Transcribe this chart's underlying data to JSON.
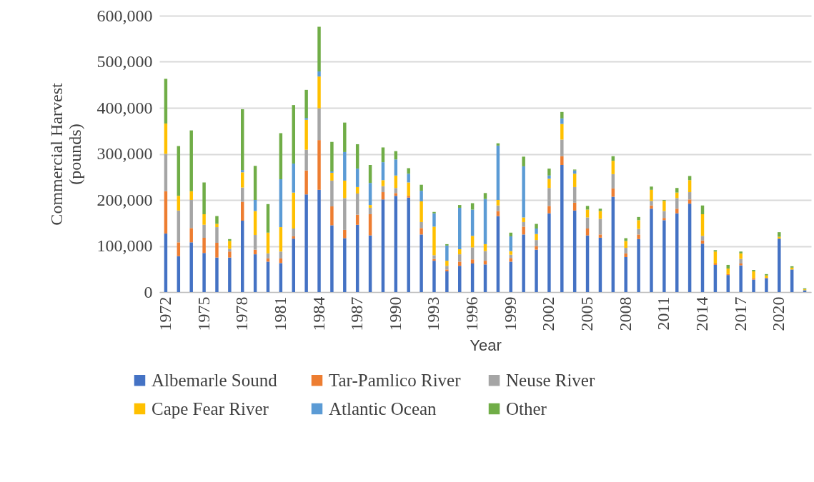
{
  "chart_data": {
    "type": "bar",
    "stacked": true,
    "xlabel": "Year",
    "ylabel": "Commercial Harvest (pounds)",
    "categories": [
      "1972",
      null,
      null,
      "1975",
      null,
      null,
      "1978",
      null,
      null,
      "1981",
      null,
      null,
      "1984",
      null,
      null,
      "1987",
      null,
      null,
      "1990",
      null,
      null,
      "1993",
      null,
      null,
      "1996",
      null,
      null,
      "1999",
      null,
      null,
      "2002",
      null,
      null,
      "2005",
      null,
      null,
      "2008",
      null,
      null,
      "2011",
      null,
      null,
      "2014",
      null,
      null,
      "2017",
      null,
      null,
      "2020",
      null,
      null
    ],
    "series": [
      {
        "name": "Albemarle Sound",
        "color": "#4472c4",
        "values": [
          127000,
          78000,
          108000,
          85000,
          75000,
          75000,
          155000,
          82000,
          66000,
          63000,
          116000,
          212000,
          222000,
          145000,
          117000,
          146000,
          123000,
          201000,
          209000,
          205000,
          125000,
          68000,
          45000,
          57000,
          62000,
          60000,
          165000,
          66000,
          125000,
          92000,
          171000,
          276000,
          177000,
          123000,
          118000,
          207000,
          76000,
          115000,
          181000,
          156000,
          171000,
          192000,
          105000,
          59000,
          37000,
          58000,
          27000,
          30000,
          116000,
          49000,
          4000
        ]
      },
      {
        "name": "Tar-Pamlico River",
        "color": "#ed7d31",
        "values": [
          92000,
          30000,
          31000,
          33000,
          32000,
          13000,
          41000,
          10000,
          7000,
          10000,
          5000,
          52000,
          108000,
          41000,
          18000,
          22000,
          46000,
          16000,
          6000,
          4000,
          14000,
          4000,
          4000,
          9000,
          9000,
          8000,
          11000,
          8000,
          17000,
          8000,
          16000,
          19000,
          17000,
          15000,
          7000,
          18000,
          8000,
          10000,
          7000,
          5000,
          10000,
          9000,
          7000,
          3000,
          2000,
          4000,
          3000,
          1000,
          0,
          0,
          0
        ]
      },
      {
        "name": "Neuse River",
        "color": "#a5a5a5",
        "values": [
          81000,
          69000,
          61000,
          28000,
          34000,
          6000,
          31000,
          32000,
          11000,
          15000,
          17000,
          45000,
          69000,
          56000,
          69000,
          46000,
          14000,
          13000,
          11000,
          0,
          13000,
          8000,
          8000,
          16000,
          26000,
          21000,
          12000,
          7000,
          10000,
          13000,
          39000,
          36000,
          34000,
          24000,
          34000,
          31000,
          12000,
          12000,
          10000,
          15000,
          23000,
          16000,
          10000,
          0,
          0,
          10000,
          0,
          0,
          0,
          0,
          0
        ]
      },
      {
        "name": "Cape Fear River",
        "color": "#ffc000",
        "values": [
          66000,
          32000,
          19000,
          23000,
          7000,
          17000,
          33000,
          52000,
          45000,
          53000,
          78000,
          65000,
          69000,
          17000,
          38000,
          14000,
          6000,
          13000,
          27000,
          29000,
          45000,
          62000,
          11000,
          11000,
          25000,
          15000,
          12000,
          8000,
          10000,
          13000,
          20000,
          34000,
          29000,
          17000,
          17000,
          29000,
          15000,
          19000,
          24000,
          22000,
          12000,
          26000,
          47000,
          26000,
          12000,
          12000,
          15000,
          5000,
          4000,
          4000,
          2000
        ]
      },
      {
        "name": "Atlantic Ocean",
        "color": "#5b9bd5",
        "values": [
          0,
          0,
          0,
          0,
          0,
          0,
          5000,
          24000,
          0,
          104000,
          63000,
          4000,
          11000,
          3000,
          62000,
          40000,
          48000,
          39000,
          35000,
          19000,
          23000,
          29000,
          33000,
          90000,
          57000,
          98000,
          118000,
          32000,
          111000,
          12000,
          7000,
          12000,
          7000,
          0,
          0,
          0,
          0,
          0,
          0,
          0,
          0,
          0,
          0,
          0,
          0,
          0,
          0,
          0,
          0,
          0,
          0
        ]
      },
      {
        "name": "Other",
        "color": "#70ad47",
        "values": [
          97000,
          108000,
          132000,
          69000,
          17000,
          4000,
          132000,
          74000,
          62000,
          100000,
          127000,
          61000,
          97000,
          64000,
          64000,
          53000,
          39000,
          32000,
          18000,
          12000,
          13000,
          3000,
          3000,
          6000,
          14000,
          13000,
          5000,
          8000,
          21000,
          10000,
          15000,
          14000,
          2000,
          8000,
          5000,
          10000,
          6000,
          7000,
          7000,
          2000,
          10000,
          9000,
          19000,
          3000,
          8000,
          4000,
          3000,
          3000,
          10000,
          3000,
          2000
        ]
      }
    ],
    "ylim": [
      0,
      600000
    ],
    "yticks": [
      0,
      {
        "value": 100000,
        "label": "100,000"
      },
      {
        "value": 200000,
        "label": "200,000"
      },
      {
        "value": 300000,
        "label": "300,000"
      },
      {
        "value": 400000,
        "label": "400,000"
      },
      {
        "value": 500000,
        "label": "500,000"
      },
      {
        "value": 600000,
        "label": "600,000"
      }
    ],
    "grid": "y",
    "legend": "bottom"
  }
}
